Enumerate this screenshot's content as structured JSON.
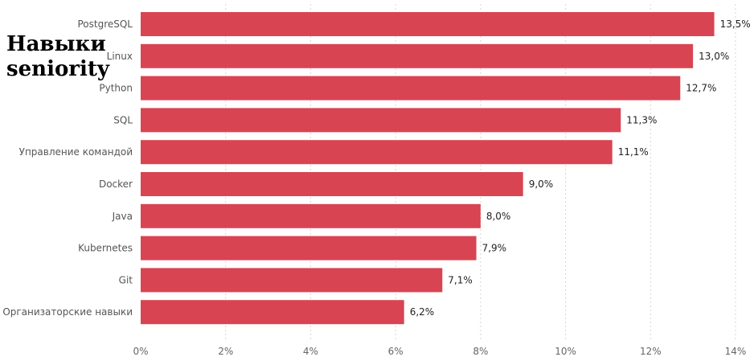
{
  "title_lines": [
    "Навыки",
    "seniority"
  ],
  "colors": {
    "bar": "#d94452",
    "grid": "#d6d6d6"
  },
  "chart_data": {
    "type": "bar",
    "orientation": "horizontal",
    "categories": [
      "PostgreSQL",
      "Linux",
      "Python",
      "SQL",
      "Управление командой",
      "Docker",
      "Java",
      "Kubernetes",
      "Git",
      "Организаторские навыки"
    ],
    "values": [
      13.5,
      13.0,
      12.7,
      11.3,
      11.1,
      9.0,
      8.0,
      7.9,
      7.1,
      6.2
    ],
    "value_labels": [
      "13,5%",
      "13,0%",
      "12,7%",
      "11,3%",
      "11,1%",
      "9,0%",
      "8,0%",
      "7,9%",
      "7,1%",
      "6,2%"
    ],
    "x_ticks": [
      0,
      2,
      4,
      6,
      8,
      10,
      12,
      14
    ],
    "x_tick_labels": [
      "0%",
      "2%",
      "4%",
      "6%",
      "8%",
      "10%",
      "12%",
      "14%"
    ],
    "xlim": [
      0,
      14
    ],
    "grid": "vertical dotted",
    "legend": "none"
  }
}
